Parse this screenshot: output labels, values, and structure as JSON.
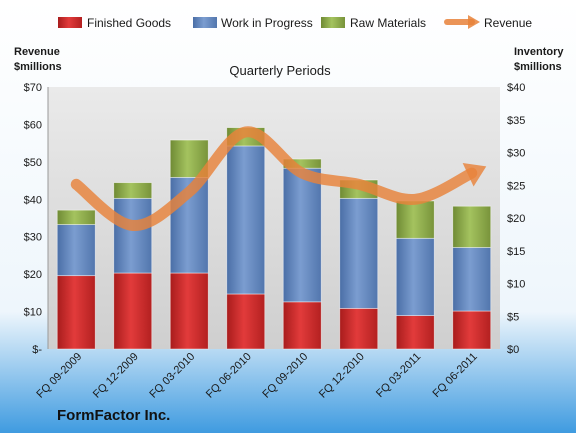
{
  "company": "FormFactor Inc.",
  "chart_data": {
    "type": "bar",
    "stacked": true,
    "subtitle": "Quarterly Periods",
    "categories": [
      "FQ 09-2009",
      "FQ 12-2009",
      "FQ 03-2010",
      "FQ 06-2010",
      "FQ 09-2010",
      "FQ 12-2010",
      "FQ 03-2011",
      "FQ 06-2011"
    ],
    "left_axis": {
      "label_line1": "Revenue",
      "label_line2": "$millions",
      "range": [
        0,
        70
      ],
      "ticks": [
        "$-",
        "$10",
        "$20",
        "$30",
        "$40",
        "$50",
        "$60",
        "$70"
      ]
    },
    "right_axis": {
      "label_line1": "Inventory",
      "label_line2": "$millions",
      "range": [
        0,
        40
      ],
      "ticks": [
        "$0",
        "$5",
        "$10",
        "$15",
        "$20",
        "$25",
        "$30",
        "$35",
        "$40"
      ]
    },
    "series": [
      {
        "name": "Finished Goods",
        "axis": "right",
        "color": "#cc2a2a",
        "values": [
          11.2,
          11.6,
          11.6,
          8.4,
          7.2,
          6.2,
          5.1,
          5.8
        ]
      },
      {
        "name": "Work in Progress",
        "axis": "right",
        "color": "#6688bb",
        "values": [
          7.8,
          11.4,
          14.6,
          22.6,
          20.4,
          16.8,
          11.8,
          9.7
        ]
      },
      {
        "name": "Raw Materials",
        "axis": "right",
        "color": "#8fad4f",
        "values": [
          2.2,
          2.4,
          5.7,
          2.8,
          1.4,
          2.8,
          5.7,
          6.3
        ]
      },
      {
        "name": "Revenue",
        "axis": "left",
        "type": "line",
        "color": "#e8823a",
        "values": [
          44,
          33,
          42,
          58,
          47,
          44,
          40,
          47
        ]
      }
    ],
    "legend_position": "top",
    "grid": false
  }
}
